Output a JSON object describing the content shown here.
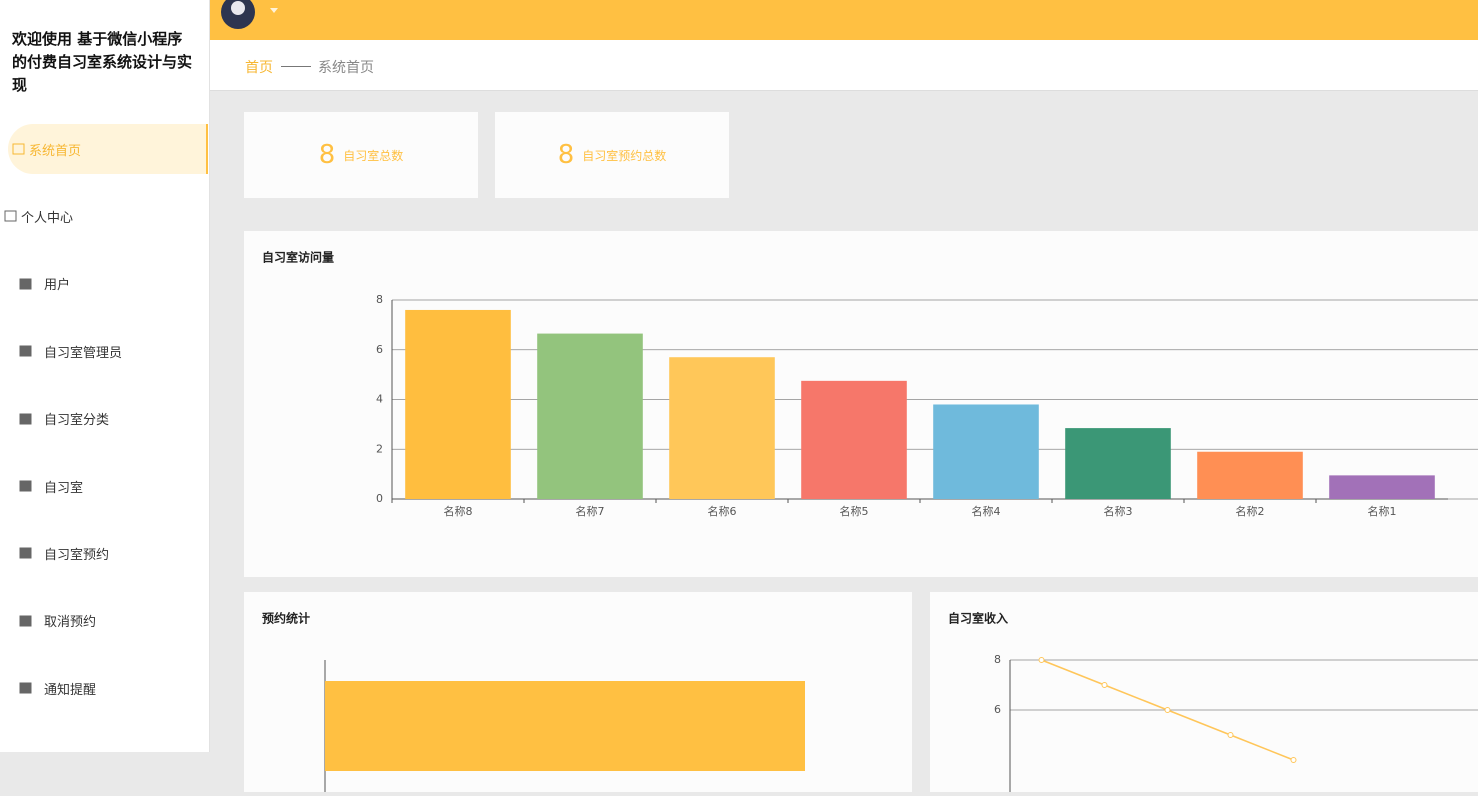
{
  "sidebar": {
    "title": "欢迎使用 基于微信小程序的付费自习室系统设计与实现",
    "menu": [
      "系统首页",
      "个人中心",
      "用户",
      "自习室管理员",
      "自习室分类",
      "自习室",
      "自习室预约",
      "取消预约",
      "通知提醒"
    ]
  },
  "breadcrumb": [
    "首页",
    "系统首页"
  ],
  "stats": [
    {
      "value": 8,
      "label": "自习室总数"
    },
    {
      "value": 8,
      "label": "自习室预约总数"
    }
  ],
  "chart_data": [
    {
      "type": "bar",
      "title": "自习室访问量",
      "categories": [
        "名称8",
        "名称7",
        "名称6",
        "名称5",
        "名称4",
        "名称3",
        "名称2",
        "名称1"
      ],
      "values": [
        7.6,
        6.65,
        5.7,
        4.75,
        3.8,
        2.85,
        1.9,
        0.95
      ],
      "colors": [
        "#FFBE3F",
        "#93C47D",
        "#FFC759",
        "#F6776A",
        "#6FBADC",
        "#3B9776",
        "#FF8F54",
        "#A271B8"
      ],
      "ylim": [
        0,
        8
      ],
      "yticks": [
        0,
        2,
        4,
        6,
        8
      ],
      "grid": true
    },
    {
      "type": "bar",
      "orientation": "horizontal",
      "title": "预约统计",
      "categories": [
        null
      ],
      "values": [
        8
      ],
      "colors": [
        "#FFC042"
      ],
      "xlim": [
        0,
        9
      ]
    },
    {
      "type": "line",
      "title": "自习室收入",
      "categories": [
        null,
        null,
        null,
        null,
        null
      ],
      "values": [
        8,
        7,
        6,
        5,
        4
      ],
      "color": "#FFC65A",
      "ylim": [
        0,
        8
      ],
      "yticks": [
        6,
        8
      ],
      "grid": true
    }
  ]
}
